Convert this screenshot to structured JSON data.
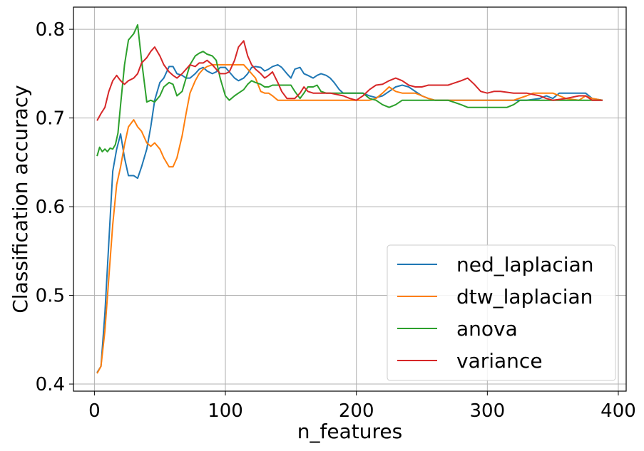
{
  "chart_data": {
    "type": "line",
    "title": "",
    "xlabel": "n_features",
    "ylabel": "Classification accuracy",
    "xlim": [
      -16,
      406
    ],
    "ylim": [
      0.392,
      0.825
    ],
    "xticks": [
      0,
      100,
      200,
      300,
      400
    ],
    "yticks": [
      0.4,
      0.5,
      0.6,
      0.7,
      0.8
    ],
    "xtick_labels": [
      "0",
      "100",
      "200",
      "300",
      "400"
    ],
    "ytick_labels": [
      "0.4",
      "0.5",
      "0.6",
      "0.7",
      "0.8"
    ],
    "grid": true,
    "legend_position": "bottom-right",
    "series": [
      {
        "name": "ned_laplacian",
        "color": "#1f77b4",
        "points": [
          [
            2,
            0.413
          ],
          [
            5,
            0.42
          ],
          [
            8,
            0.48
          ],
          [
            11,
            0.56
          ],
          [
            14,
            0.64
          ],
          [
            17,
            0.665
          ],
          [
            20,
            0.682
          ],
          [
            23,
            0.655
          ],
          [
            26,
            0.635
          ],
          [
            30,
            0.635
          ],
          [
            33,
            0.632
          ],
          [
            36,
            0.645
          ],
          [
            40,
            0.665
          ],
          [
            43,
            0.69
          ],
          [
            46,
            0.72
          ],
          [
            50,
            0.74
          ],
          [
            53,
            0.745
          ],
          [
            57,
            0.758
          ],
          [
            60,
            0.758
          ],
          [
            63,
            0.75
          ],
          [
            67,
            0.748
          ],
          [
            70,
            0.745
          ],
          [
            73,
            0.745
          ],
          [
            77,
            0.75
          ],
          [
            80,
            0.755
          ],
          [
            83,
            0.757
          ],
          [
            86,
            0.753
          ],
          [
            90,
            0.75
          ],
          [
            93,
            0.752
          ],
          [
            96,
            0.757
          ],
          [
            100,
            0.757
          ],
          [
            103,
            0.752
          ],
          [
            107,
            0.745
          ],
          [
            110,
            0.742
          ],
          [
            114,
            0.745
          ],
          [
            117,
            0.75
          ],
          [
            120,
            0.757
          ],
          [
            123,
            0.758
          ],
          [
            127,
            0.757
          ],
          [
            130,
            0.753
          ],
          [
            133,
            0.755
          ],
          [
            136,
            0.758
          ],
          [
            140,
            0.76
          ],
          [
            143,
            0.757
          ],
          [
            147,
            0.75
          ],
          [
            150,
            0.745
          ],
          [
            153,
            0.755
          ],
          [
            157,
            0.757
          ],
          [
            160,
            0.75
          ],
          [
            163,
            0.748
          ],
          [
            167,
            0.745
          ],
          [
            170,
            0.748
          ],
          [
            173,
            0.75
          ],
          [
            177,
            0.748
          ],
          [
            180,
            0.745
          ],
          [
            183,
            0.74
          ],
          [
            187,
            0.732
          ],
          [
            190,
            0.728
          ],
          [
            195,
            0.728
          ],
          [
            200,
            0.728
          ],
          [
            205,
            0.728
          ],
          [
            210,
            0.725
          ],
          [
            215,
            0.723
          ],
          [
            220,
            0.725
          ],
          [
            225,
            0.73
          ],
          [
            230,
            0.735
          ],
          [
            235,
            0.737
          ],
          [
            240,
            0.735
          ],
          [
            245,
            0.73
          ],
          [
            250,
            0.725
          ],
          [
            255,
            0.722
          ],
          [
            260,
            0.72
          ],
          [
            300,
            0.72
          ],
          [
            330,
            0.72
          ],
          [
            340,
            0.722
          ],
          [
            345,
            0.725
          ],
          [
            350,
            0.722
          ],
          [
            355,
            0.728
          ],
          [
            360,
            0.728
          ],
          [
            370,
            0.728
          ],
          [
            375,
            0.728
          ],
          [
            380,
            0.722
          ],
          [
            388,
            0.72
          ]
        ]
      },
      {
        "name": "dtw_laplacian",
        "color": "#ff7f0e",
        "points": [
          [
            2,
            0.412
          ],
          [
            5,
            0.42
          ],
          [
            8,
            0.46
          ],
          [
            11,
            0.52
          ],
          [
            14,
            0.58
          ],
          [
            17,
            0.625
          ],
          [
            20,
            0.645
          ],
          [
            23,
            0.67
          ],
          [
            26,
            0.69
          ],
          [
            30,
            0.698
          ],
          [
            33,
            0.69
          ],
          [
            36,
            0.685
          ],
          [
            40,
            0.672
          ],
          [
            43,
            0.668
          ],
          [
            46,
            0.672
          ],
          [
            50,
            0.665
          ],
          [
            53,
            0.655
          ],
          [
            57,
            0.645
          ],
          [
            60,
            0.645
          ],
          [
            63,
            0.655
          ],
          [
            67,
            0.68
          ],
          [
            70,
            0.705
          ],
          [
            73,
            0.728
          ],
          [
            77,
            0.742
          ],
          [
            80,
            0.75
          ],
          [
            83,
            0.755
          ],
          [
            86,
            0.758
          ],
          [
            90,
            0.76
          ],
          [
            95,
            0.76
          ],
          [
            100,
            0.76
          ],
          [
            105,
            0.76
          ],
          [
            110,
            0.76
          ],
          [
            114,
            0.76
          ],
          [
            117,
            0.755
          ],
          [
            120,
            0.75
          ],
          [
            123,
            0.745
          ],
          [
            127,
            0.73
          ],
          [
            130,
            0.728
          ],
          [
            133,
            0.728
          ],
          [
            136,
            0.725
          ],
          [
            140,
            0.72
          ],
          [
            145,
            0.72
          ],
          [
            150,
            0.72
          ],
          [
            160,
            0.72
          ],
          [
            180,
            0.72
          ],
          [
            200,
            0.72
          ],
          [
            210,
            0.72
          ],
          [
            215,
            0.722
          ],
          [
            220,
            0.728
          ],
          [
            225,
            0.735
          ],
          [
            230,
            0.73
          ],
          [
            235,
            0.728
          ],
          [
            240,
            0.728
          ],
          [
            245,
            0.728
          ],
          [
            250,
            0.725
          ],
          [
            255,
            0.722
          ],
          [
            260,
            0.72
          ],
          [
            300,
            0.72
          ],
          [
            320,
            0.72
          ],
          [
            330,
            0.725
          ],
          [
            335,
            0.728
          ],
          [
            340,
            0.728
          ],
          [
            350,
            0.728
          ],
          [
            360,
            0.722
          ],
          [
            370,
            0.72
          ],
          [
            375,
            0.725
          ],
          [
            380,
            0.722
          ],
          [
            388,
            0.72
          ]
        ]
      },
      {
        "name": "anova",
        "color": "#2ca02c",
        "points": [
          [
            2,
            0.657
          ],
          [
            4,
            0.667
          ],
          [
            6,
            0.662
          ],
          [
            8,
            0.665
          ],
          [
            10,
            0.662
          ],
          [
            12,
            0.666
          ],
          [
            14,
            0.665
          ],
          [
            16,
            0.67
          ],
          [
            18,
            0.683
          ],
          [
            20,
            0.715
          ],
          [
            23,
            0.76
          ],
          [
            26,
            0.788
          ],
          [
            30,
            0.795
          ],
          [
            33,
            0.805
          ],
          [
            36,
            0.765
          ],
          [
            40,
            0.718
          ],
          [
            43,
            0.72
          ],
          [
            46,
            0.718
          ],
          [
            50,
            0.725
          ],
          [
            53,
            0.735
          ],
          [
            57,
            0.74
          ],
          [
            60,
            0.738
          ],
          [
            63,
            0.725
          ],
          [
            67,
            0.73
          ],
          [
            70,
            0.745
          ],
          [
            73,
            0.76
          ],
          [
            77,
            0.77
          ],
          [
            80,
            0.773
          ],
          [
            83,
            0.775
          ],
          [
            86,
            0.772
          ],
          [
            90,
            0.77
          ],
          [
            93,
            0.765
          ],
          [
            96,
            0.745
          ],
          [
            100,
            0.725
          ],
          [
            103,
            0.72
          ],
          [
            107,
            0.725
          ],
          [
            110,
            0.728
          ],
          [
            114,
            0.732
          ],
          [
            117,
            0.738
          ],
          [
            120,
            0.742
          ],
          [
            123,
            0.74
          ],
          [
            127,
            0.738
          ],
          [
            130,
            0.735
          ],
          [
            133,
            0.735
          ],
          [
            136,
            0.737
          ],
          [
            140,
            0.737
          ],
          [
            145,
            0.737
          ],
          [
            150,
            0.737
          ],
          [
            153,
            0.73
          ],
          [
            157,
            0.722
          ],
          [
            160,
            0.728
          ],
          [
            163,
            0.735
          ],
          [
            167,
            0.735
          ],
          [
            170,
            0.737
          ],
          [
            173,
            0.73
          ],
          [
            177,
            0.728
          ],
          [
            180,
            0.728
          ],
          [
            190,
            0.728
          ],
          [
            200,
            0.728
          ],
          [
            205,
            0.728
          ],
          [
            210,
            0.722
          ],
          [
            215,
            0.72
          ],
          [
            220,
            0.715
          ],
          [
            225,
            0.712
          ],
          [
            230,
            0.715
          ],
          [
            235,
            0.72
          ],
          [
            240,
            0.72
          ],
          [
            260,
            0.72
          ],
          [
            270,
            0.72
          ],
          [
            280,
            0.715
          ],
          [
            285,
            0.712
          ],
          [
            290,
            0.712
          ],
          [
            300,
            0.712
          ],
          [
            315,
            0.712
          ],
          [
            320,
            0.715
          ],
          [
            325,
            0.72
          ],
          [
            330,
            0.72
          ],
          [
            345,
            0.72
          ],
          [
            360,
            0.72
          ],
          [
            370,
            0.72
          ],
          [
            388,
            0.72
          ]
        ]
      },
      {
        "name": "variance",
        "color": "#d62728",
        "points": [
          [
            2,
            0.697
          ],
          [
            5,
            0.705
          ],
          [
            8,
            0.712
          ],
          [
            11,
            0.73
          ],
          [
            14,
            0.742
          ],
          [
            17,
            0.748
          ],
          [
            20,
            0.742
          ],
          [
            23,
            0.738
          ],
          [
            26,
            0.742
          ],
          [
            30,
            0.745
          ],
          [
            33,
            0.75
          ],
          [
            36,
            0.762
          ],
          [
            40,
            0.768
          ],
          [
            43,
            0.775
          ],
          [
            46,
            0.78
          ],
          [
            50,
            0.77
          ],
          [
            53,
            0.76
          ],
          [
            57,
            0.752
          ],
          [
            60,
            0.748
          ],
          [
            63,
            0.745
          ],
          [
            67,
            0.75
          ],
          [
            70,
            0.755
          ],
          [
            73,
            0.76
          ],
          [
            77,
            0.758
          ],
          [
            80,
            0.762
          ],
          [
            83,
            0.762
          ],
          [
            86,
            0.765
          ],
          [
            90,
            0.76
          ],
          [
            93,
            0.755
          ],
          [
            96,
            0.75
          ],
          [
            100,
            0.75
          ],
          [
            103,
            0.752
          ],
          [
            107,
            0.765
          ],
          [
            110,
            0.78
          ],
          [
            114,
            0.787
          ],
          [
            117,
            0.77
          ],
          [
            120,
            0.76
          ],
          [
            123,
            0.755
          ],
          [
            127,
            0.75
          ],
          [
            130,
            0.745
          ],
          [
            133,
            0.748
          ],
          [
            136,
            0.752
          ],
          [
            140,
            0.74
          ],
          [
            143,
            0.73
          ],
          [
            147,
            0.722
          ],
          [
            150,
            0.722
          ],
          [
            153,
            0.722
          ],
          [
            157,
            0.728
          ],
          [
            160,
            0.735
          ],
          [
            163,
            0.73
          ],
          [
            167,
            0.728
          ],
          [
            170,
            0.728
          ],
          [
            180,
            0.728
          ],
          [
            190,
            0.725
          ],
          [
            195,
            0.722
          ],
          [
            200,
            0.72
          ],
          [
            205,
            0.725
          ],
          [
            210,
            0.732
          ],
          [
            215,
            0.737
          ],
          [
            220,
            0.738
          ],
          [
            225,
            0.742
          ],
          [
            230,
            0.745
          ],
          [
            235,
            0.742
          ],
          [
            240,
            0.737
          ],
          [
            245,
            0.735
          ],
          [
            250,
            0.735
          ],
          [
            255,
            0.737
          ],
          [
            260,
            0.737
          ],
          [
            270,
            0.737
          ],
          [
            280,
            0.742
          ],
          [
            285,
            0.745
          ],
          [
            290,
            0.738
          ],
          [
            295,
            0.73
          ],
          [
            300,
            0.728
          ],
          [
            305,
            0.73
          ],
          [
            310,
            0.73
          ],
          [
            320,
            0.728
          ],
          [
            330,
            0.728
          ],
          [
            340,
            0.725
          ],
          [
            345,
            0.722
          ],
          [
            350,
            0.72
          ],
          [
            360,
            0.722
          ],
          [
            370,
            0.725
          ],
          [
            375,
            0.725
          ],
          [
            380,
            0.72
          ],
          [
            388,
            0.72
          ]
        ]
      }
    ]
  }
}
